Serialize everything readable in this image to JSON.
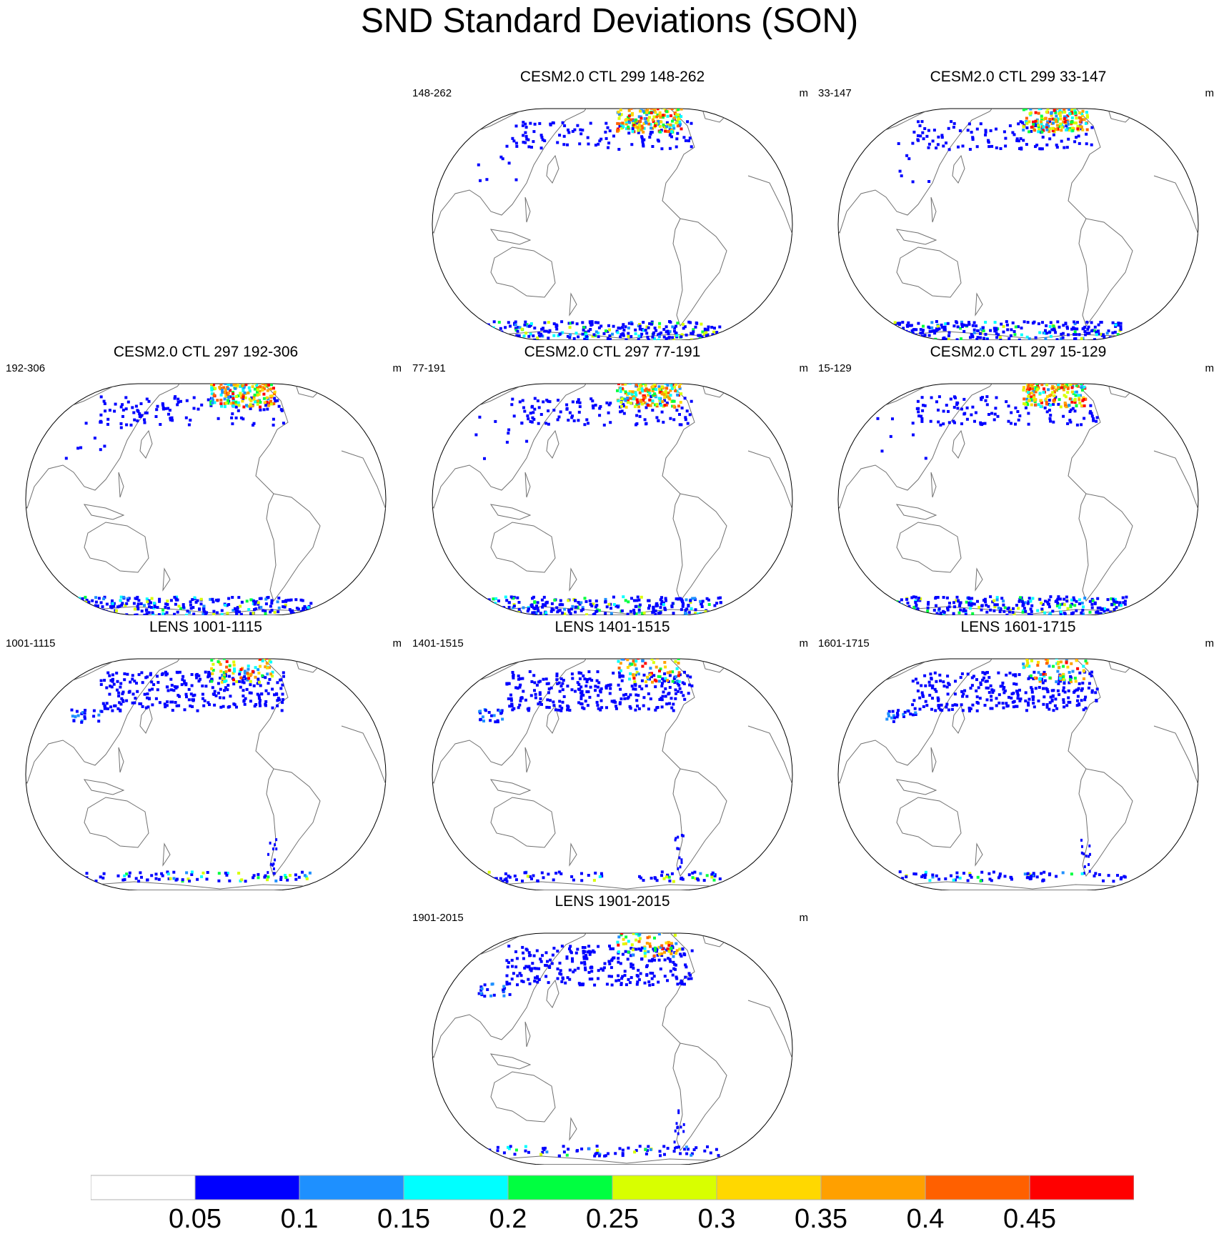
{
  "title": "SND Standard Deviations (SON)",
  "units": "m",
  "panels": [
    {
      "title": "CESM2.0 CTL 299 148-262",
      "left": "148-262",
      "right": "m"
    },
    {
      "title": "CESM2.0 CTL 299 33-147",
      "left": "33-147",
      "right": "m"
    },
    {
      "title": "CESM2.0 CTL 297 192-306",
      "left": "192-306",
      "right": "m"
    },
    {
      "title": "CESM2.0 CTL 297 77-191",
      "left": "77-191",
      "right": "m"
    },
    {
      "title": "CESM2.0 CTL 297 15-129",
      "left": "15-129",
      "right": "m"
    },
    {
      "title": "LENS 1001-1115",
      "left": "1001-1115",
      "right": "m"
    },
    {
      "title": "LENS 1401-1515",
      "left": "1401-1515",
      "right": "m"
    },
    {
      "title": "LENS 1601-1715",
      "left": "1601-1715",
      "right": "m"
    },
    {
      "title": "LENS 1901-2015",
      "left": "1901-2015",
      "right": "m"
    }
  ],
  "colorbar": {
    "colors": [
      "#ffffff",
      "#0000ff",
      "#1e90ff",
      "#00ffff",
      "#00ff40",
      "#d8ff00",
      "#ffd800",
      "#ffa000",
      "#ff6000",
      "#ff0000"
    ],
    "labels": [
      "0.05",
      "0.1",
      "0.15",
      "0.2",
      "0.25",
      "0.3",
      "0.35",
      "0.4",
      "0.45"
    ]
  },
  "colors": {
    "ocean": "#ffffff",
    "coastline": "#707070",
    "outline": "#000000"
  }
}
